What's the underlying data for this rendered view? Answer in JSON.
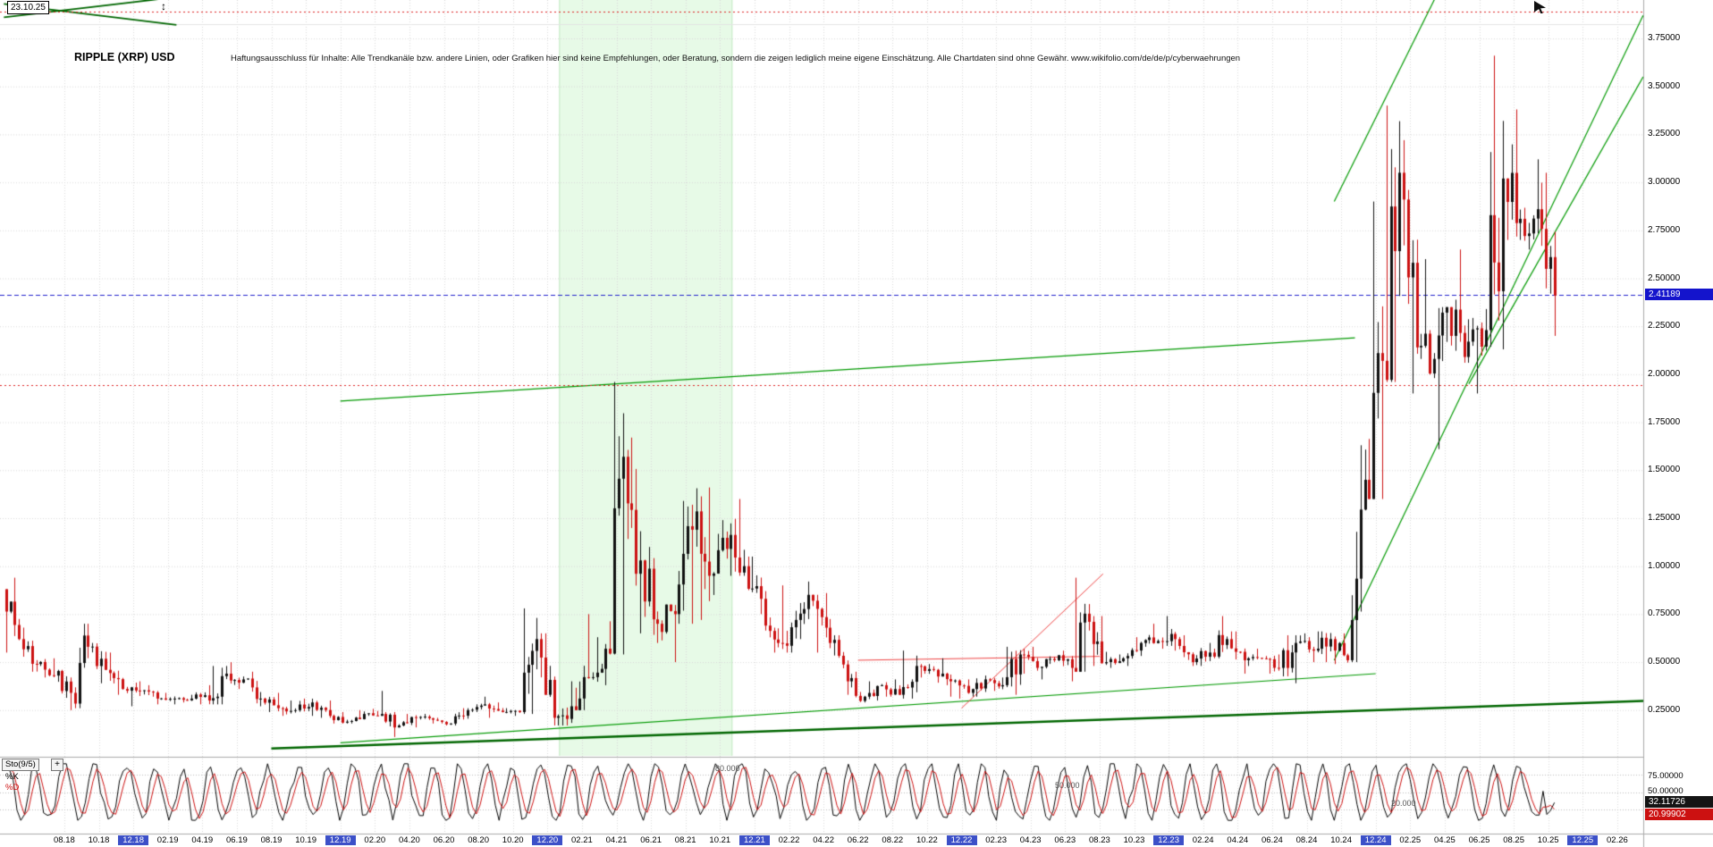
{
  "header": {
    "date_label": "23.10.25",
    "title": "RIPPLE (XRP) USD",
    "disclaimer": "Haftungsausschluss für Inhalte: Alle Trendkanäle bzw. andere Linien, oder Grafiken hier sind keine Empfehlungen, oder Beratung, sondern die zeigen lediglich meine eigene Einschätzung. Alle Chartdaten sind ohne Gewähr.  www.wikifolio.com/de/de/p/cyberwaehrungen"
  },
  "icons": {
    "resize": "↕"
  },
  "price_axis": {
    "tick_labels": [
      "3.75000",
      "3.50000",
      "3.25000",
      "3.00000",
      "2.75000",
      "2.50000",
      "2.25000",
      "2.00000",
      "1.75000",
      "1.50000",
      "1.25000",
      "1.00000",
      "0.75000",
      "0.50000",
      "0.25000"
    ],
    "current": {
      "label": "2.41189",
      "value": 2.41189,
      "color": "#1414cc"
    }
  },
  "x_axis": {
    "first_month_offset": 3,
    "step_months": 2,
    "labels": [
      "08.18",
      "10.18",
      "12.18",
      "02.19",
      "04.19",
      "06.19",
      "08.19",
      "10.19",
      "12.19",
      "02.20",
      "04.20",
      "06.20",
      "08.20",
      "10.20",
      "12.20",
      "02.21",
      "04.21",
      "06.21",
      "08.21",
      "10.21",
      "12.21",
      "02.22",
      "04.22",
      "06.22",
      "08.22",
      "10.22",
      "12.22",
      "02.23",
      "04.23",
      "06.23",
      "08.23",
      "10.23",
      "12.23",
      "02.24",
      "04.24",
      "06.24",
      "08.24",
      "10.24",
      "12.24",
      "02.25",
      "04.25",
      "06.25",
      "08.25",
      "10.25",
      "12.25",
      "02.26"
    ],
    "highlight": [
      "12.18",
      "12.19",
      "12.20",
      "12.21",
      "12.22",
      "12.23",
      "12.24",
      "12.25"
    ],
    "highlight_color": "#3c50c8"
  },
  "indicator_panel": {
    "name": "Sto(9/5)",
    "add_button": "+",
    "k_label": "%K",
    "d_label": "%D",
    "levels_labels": [
      "80.000",
      "50.000",
      "20.000"
    ],
    "right_labels": [
      "75.00000",
      "50.00000",
      "25.00000"
    ],
    "k_value": "32.11726",
    "d_value": "20.99902"
  },
  "chart_data": {
    "type": "candlestick",
    "title": "RIPPLE (XRP) USD",
    "x_unit": "month",
    "start_month": "2018-05",
    "ylim": [
      0,
      3.95
    ],
    "y_ticks": [
      3.75,
      3.5,
      3.25,
      3.0,
      2.75,
      2.5,
      2.25,
      2.0,
      1.75,
      1.5,
      1.25,
      1.0,
      0.75,
      0.5,
      0.25
    ],
    "grid": true,
    "ohlc_monthly": [
      [
        0.88,
        0.94,
        0.55,
        0.62
      ],
      [
        0.62,
        0.68,
        0.45,
        0.49
      ],
      [
        0.49,
        0.52,
        0.42,
        0.43
      ],
      [
        0.43,
        0.46,
        0.25,
        0.34
      ],
      [
        0.34,
        0.7,
        0.26,
        0.58
      ],
      [
        0.58,
        0.6,
        0.39,
        0.46
      ],
      [
        0.46,
        0.55,
        0.33,
        0.36
      ],
      [
        0.36,
        0.4,
        0.27,
        0.35
      ],
      [
        0.35,
        0.38,
        0.28,
        0.31
      ],
      [
        0.31,
        0.34,
        0.28,
        0.31
      ],
      [
        0.31,
        0.33,
        0.29,
        0.31
      ],
      [
        0.31,
        0.38,
        0.28,
        0.3
      ],
      [
        0.3,
        0.48,
        0.28,
        0.44
      ],
      [
        0.44,
        0.5,
        0.36,
        0.41
      ],
      [
        0.41,
        0.45,
        0.27,
        0.31
      ],
      [
        0.31,
        0.34,
        0.24,
        0.26
      ],
      [
        0.26,
        0.3,
        0.22,
        0.25
      ],
      [
        0.25,
        0.31,
        0.22,
        0.29
      ],
      [
        0.29,
        0.3,
        0.21,
        0.22
      ],
      [
        0.22,
        0.24,
        0.18,
        0.19
      ],
      [
        0.19,
        0.25,
        0.18,
        0.23
      ],
      [
        0.23,
        0.35,
        0.22,
        0.23
      ],
      [
        0.23,
        0.24,
        0.11,
        0.17
      ],
      [
        0.17,
        0.23,
        0.16,
        0.21
      ],
      [
        0.21,
        0.23,
        0.18,
        0.2
      ],
      [
        0.2,
        0.21,
        0.17,
        0.18
      ],
      [
        0.18,
        0.26,
        0.17,
        0.25
      ],
      [
        0.25,
        0.32,
        0.24,
        0.28
      ],
      [
        0.28,
        0.29,
        0.21,
        0.24
      ],
      [
        0.24,
        0.26,
        0.22,
        0.24
      ],
      [
        0.24,
        0.78,
        0.23,
        0.62
      ],
      [
        0.62,
        0.65,
        0.17,
        0.21
      ],
      [
        0.21,
        0.4,
        0.17,
        0.27
      ],
      [
        0.27,
        0.75,
        0.25,
        0.42
      ],
      [
        0.42,
        0.63,
        0.38,
        0.57
      ],
      [
        0.57,
        1.96,
        0.54,
        1.57
      ],
      [
        1.57,
        1.67,
        0.65,
        1.03
      ],
      [
        1.03,
        1.1,
        0.6,
        0.7
      ],
      [
        0.7,
        0.8,
        0.5,
        0.75
      ],
      [
        0.75,
        1.34,
        0.7,
        1.19
      ],
      [
        1.19,
        1.41,
        0.72,
        0.95
      ],
      [
        0.95,
        1.24,
        0.85,
        1.09
      ],
      [
        1.09,
        1.35,
        0.95,
        1.0
      ],
      [
        1.0,
        1.05,
        0.75,
        0.83
      ],
      [
        0.83,
        0.87,
        0.55,
        0.6
      ],
      [
        0.6,
        0.9,
        0.55,
        0.72
      ],
      [
        0.72,
        0.92,
        0.62,
        0.82
      ],
      [
        0.82,
        0.86,
        0.55,
        0.6
      ],
      [
        0.6,
        0.64,
        0.33,
        0.4
      ],
      [
        0.4,
        0.45,
        0.29,
        0.32
      ],
      [
        0.32,
        0.4,
        0.3,
        0.38
      ],
      [
        0.38,
        0.41,
        0.32,
        0.33
      ],
      [
        0.33,
        0.56,
        0.31,
        0.48
      ],
      [
        0.48,
        0.49,
        0.42,
        0.46
      ],
      [
        0.46,
        0.52,
        0.32,
        0.4
      ],
      [
        0.4,
        0.41,
        0.31,
        0.34
      ],
      [
        0.34,
        0.43,
        0.32,
        0.41
      ],
      [
        0.41,
        0.42,
        0.35,
        0.38
      ],
      [
        0.38,
        0.58,
        0.33,
        0.54
      ],
      [
        0.54,
        0.58,
        0.44,
        0.47
      ],
      [
        0.47,
        0.53,
        0.41,
        0.51
      ],
      [
        0.51,
        0.56,
        0.4,
        0.47
      ],
      [
        0.47,
        0.94,
        0.45,
        0.71
      ],
      [
        0.71,
        0.74,
        0.48,
        0.5
      ],
      [
        0.5,
        0.54,
        0.47,
        0.52
      ],
      [
        0.52,
        0.63,
        0.48,
        0.6
      ],
      [
        0.6,
        0.7,
        0.58,
        0.61
      ],
      [
        0.61,
        0.74,
        0.56,
        0.62
      ],
      [
        0.62,
        0.64,
        0.48,
        0.5
      ],
      [
        0.5,
        0.6,
        0.48,
        0.55
      ],
      [
        0.55,
        0.74,
        0.52,
        0.62
      ],
      [
        0.62,
        0.66,
        0.44,
        0.51
      ],
      [
        0.51,
        0.57,
        0.48,
        0.52
      ],
      [
        0.52,
        0.54,
        0.44,
        0.47
      ],
      [
        0.47,
        0.64,
        0.39,
        0.6
      ],
      [
        0.6,
        0.65,
        0.5,
        0.56
      ],
      [
        0.56,
        0.66,
        0.5,
        0.62
      ],
      [
        0.62,
        0.65,
        0.49,
        0.51
      ],
      [
        0.51,
        1.63,
        0.5,
        1.45
      ],
      [
        1.45,
        2.9,
        1.35,
        2.07
      ],
      [
        2.07,
        3.4,
        1.96,
        3.05
      ],
      [
        3.05,
        3.22,
        1.9,
        2.14
      ],
      [
        2.14,
        2.6,
        1.98,
        2.08
      ],
      [
        2.08,
        2.35,
        1.61,
        2.2
      ],
      [
        2.2,
        2.65,
        2.06,
        2.17
      ],
      [
        2.17,
        2.34,
        1.9,
        2.23
      ],
      [
        2.23,
        3.66,
        2.13,
        3.02
      ],
      [
        3.02,
        3.38,
        2.7,
        2.81
      ],
      [
        2.81,
        3.12,
        2.65,
        2.86
      ],
      [
        2.86,
        3.05,
        2.2,
        2.41
      ]
    ],
    "horizontal_lines": [
      {
        "price": 3.89,
        "color": "#dd2222",
        "dash": [
          2,
          3
        ]
      },
      {
        "price": 1.945,
        "color": "#dd2222",
        "dash": [
          2,
          3
        ]
      },
      {
        "price": 2.41189,
        "color": "#2222cc",
        "dash": [
          5,
          3
        ],
        "label": "2.41189"
      }
    ],
    "trend_lines": [
      {
        "m1": 19,
        "p1": 1.86,
        "m2": 77.8,
        "p2": 2.19,
        "color": "#009900",
        "w": 1.2
      },
      {
        "m1": 15,
        "p1": 0.05,
        "m2": 95,
        "p2": 0.3,
        "color": "#006600",
        "w": 2.5
      },
      {
        "m1": 19,
        "p1": 0.08,
        "m2": 79,
        "p2": 0.44,
        "color": "#009900",
        "w": 1.2
      },
      {
        "m1": 76.6,
        "p1": 0.51,
        "m2": 94.5,
        "p2": 3.87,
        "color": "#009900",
        "w": 1.2
      },
      {
        "m1": 76.6,
        "p1": 2.9,
        "m2": 82.5,
        "p2": 3.97,
        "color": "#009900",
        "w": 1.2
      },
      {
        "m1": 84.4,
        "p1": 1.95,
        "m2": 94.5,
        "p2": 3.55,
        "color": "#009900",
        "w": 1.2
      },
      {
        "m1": -0.5,
        "p1": 3.86,
        "m2": 9,
        "p2": 3.96,
        "color": "#006600",
        "w": 1.8
      },
      {
        "m1": -0.5,
        "p1": 3.93,
        "m2": 9.5,
        "p2": 3.82,
        "color": "#006600",
        "w": 1.8
      },
      {
        "m1": 49,
        "p1": 0.51,
        "m2": 63,
        "p2": 0.53,
        "color": "#ee4444",
        "w": 1
      },
      {
        "m1": 55,
        "p1": 0.26,
        "m2": 63.2,
        "p2": 0.96,
        "color": "#ee4444",
        "w": 1
      }
    ],
    "shaded_region": {
      "m1": 31.7,
      "m2": 41.7,
      "color": "#e7fae7",
      "edge": "#bfe8bf"
    },
    "stochastic": {
      "name": "Sto(9/5)",
      "k_last": 32.11726,
      "d_last": 20.99902,
      "levels": [
        80,
        50,
        20
      ],
      "range": [
        0,
        100
      ],
      "k_color": "#000000",
      "d_color": "#cc1111"
    },
    "candle_up_color": "#101010",
    "candle_down_color": "#cc1111"
  }
}
